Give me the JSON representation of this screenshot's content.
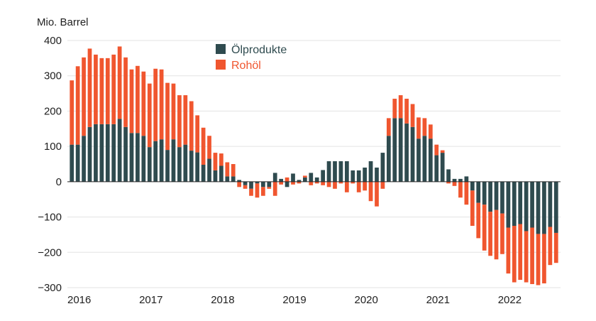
{
  "chart_data": {
    "type": "bar",
    "stacked": true,
    "ylabel": "Mio. Barrel",
    "ylim": [
      -300,
      400
    ],
    "yticks": [
      400,
      300,
      200,
      100,
      0,
      -100,
      -200,
      -300
    ],
    "ytick_labels": [
      "400",
      "300",
      "200",
      "100",
      "0",
      "−100",
      "−200",
      "−300"
    ],
    "grid": true,
    "legend_position": "top-center",
    "x_start": "2016-01",
    "x_labels": [
      "2016",
      "2017",
      "2018",
      "2019",
      "2020",
      "2021",
      "2022"
    ],
    "x_label_months": [
      "2016-01",
      "2017-01",
      "2018-01",
      "2019-01",
      "2020-01",
      "2021-01",
      "2022-01"
    ],
    "series": [
      {
        "name": "Ölprodukte",
        "color": "#2f4b4f",
        "values": [
          105,
          105,
          130,
          155,
          163,
          163,
          163,
          163,
          178,
          155,
          138,
          138,
          130,
          98,
          115,
          120,
          90,
          120,
          98,
          105,
          88,
          83,
          48,
          65,
          32,
          45,
          15,
          15,
          5,
          -10,
          -20,
          -5,
          -15,
          -15,
          25,
          8,
          -15,
          23,
          5,
          12,
          25,
          12,
          33,
          58,
          58,
          58,
          58,
          32,
          32,
          40,
          58,
          40,
          82,
          130,
          180,
          180,
          165,
          155,
          122,
          130,
          122,
          75,
          82,
          35,
          8,
          8,
          15,
          -25,
          -60,
          -65,
          -85,
          -80,
          -90,
          -130,
          -125,
          -120,
          -140,
          -130,
          -148,
          -148,
          -128,
          -145
        ]
      },
      {
        "name": "Rohöl",
        "color": "#f0562f",
        "values": [
          182,
          222,
          222,
          222,
          197,
          187,
          187,
          197,
          205,
          197,
          180,
          190,
          182,
          180,
          205,
          198,
          190,
          158,
          147,
          140,
          140,
          105,
          105,
          65,
          50,
          35,
          40,
          35,
          -15,
          -10,
          -20,
          -40,
          -25,
          -5,
          -40,
          -8,
          12,
          -8,
          -5,
          5,
          -10,
          -5,
          -10,
          -15,
          -20,
          -5,
          -30,
          -5,
          -30,
          -25,
          -55,
          -70,
          -20,
          50,
          55,
          65,
          70,
          65,
          60,
          50,
          40,
          30,
          7,
          -5,
          -12,
          -45,
          -65,
          -100,
          -100,
          -130,
          -125,
          -140,
          -115,
          -130,
          -160,
          -158,
          -145,
          -160,
          -145,
          -140,
          -108,
          -85
        ]
      }
    ]
  }
}
